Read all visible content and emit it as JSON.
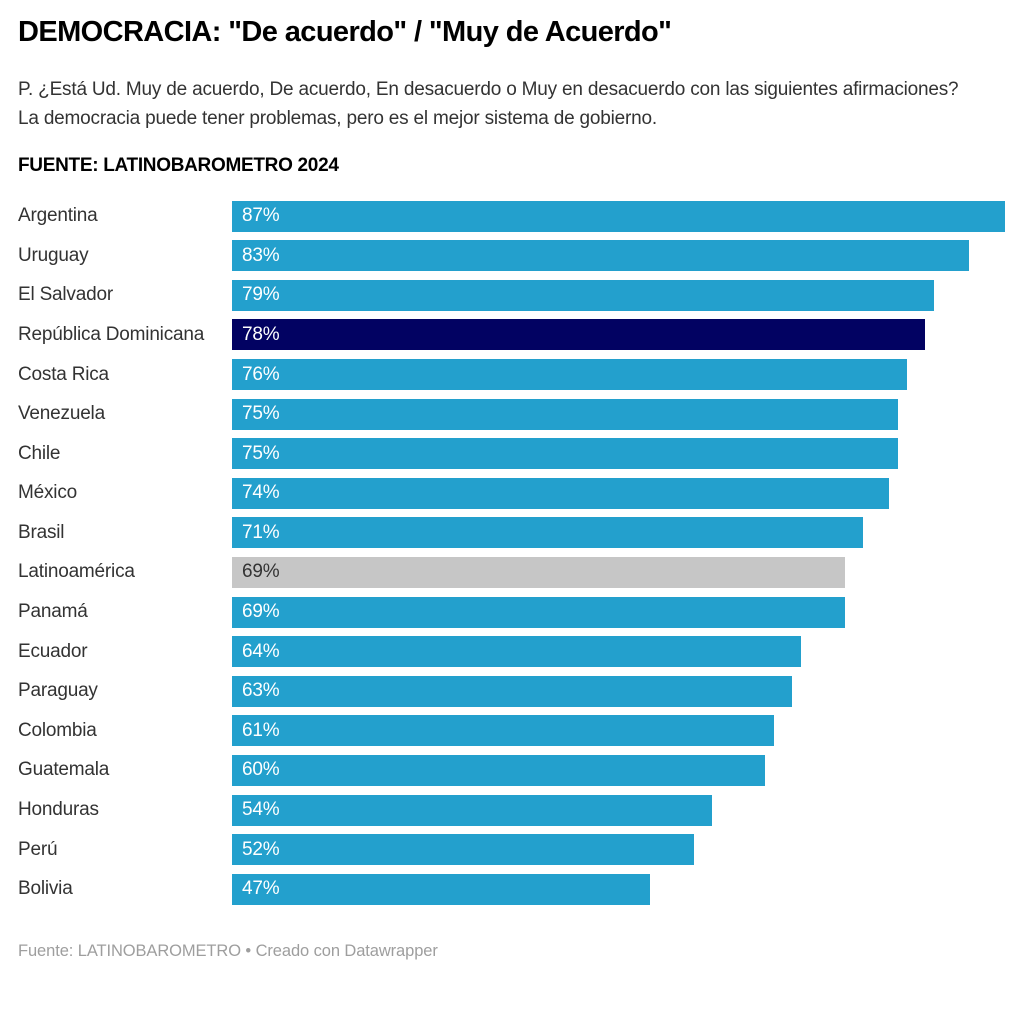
{
  "header": {
    "title": "DEMOCRACIA: \"De acuerdo\" / \"Muy de Acuerdo\"",
    "description": "P. ¿Está Ud. Muy de acuerdo, De acuerdo, En desacuerdo o Muy en desacuerdo con las siguientes afirmaciones? La democracia puede tener problemas, pero es el mejor sistema de gobierno.",
    "source_note": "FUENTE: LATINOBAROMETRO 2024"
  },
  "footer": {
    "attribution": "Fuente: LATINOBAROMETRO • Creado con Datawrapper"
  },
  "chart_data": {
    "type": "bar",
    "orientation": "horizontal",
    "value_suffix": "%",
    "scale_max": 87,
    "axis_visible": false,
    "legend": "none",
    "colors": {
      "default": "#23A0CD",
      "highlight": "#020262",
      "average": "#C6C6C6",
      "value_light": "#FFFFFF",
      "value_dark": "#333333"
    },
    "categories": [
      "Argentina",
      "Uruguay",
      "El Salvador",
      "República Dominicana",
      "Costa Rica",
      "Venezuela",
      "Chile",
      "México",
      "Brasil",
      "Latinoamérica",
      "Panamá",
      "Ecuador",
      "Paraguay",
      "Colombia",
      "Guatemala",
      "Honduras",
      "Perú",
      "Bolivia"
    ],
    "values": [
      87,
      83,
      79,
      78,
      76,
      75,
      75,
      74,
      71,
      69,
      69,
      64,
      63,
      61,
      60,
      54,
      52,
      47
    ],
    "rows": [
      {
        "label": "Argentina",
        "value": 87,
        "display": "87%",
        "type": "default"
      },
      {
        "label": "Uruguay",
        "value": 83,
        "display": "83%",
        "type": "default"
      },
      {
        "label": "El Salvador",
        "value": 79,
        "display": "79%",
        "type": "default"
      },
      {
        "label": "República Dominicana",
        "value": 78,
        "display": "78%",
        "type": "highlight"
      },
      {
        "label": "Costa Rica",
        "value": 76,
        "display": "76%",
        "type": "default"
      },
      {
        "label": "Venezuela",
        "value": 75,
        "display": "75%",
        "type": "default"
      },
      {
        "label": "Chile",
        "value": 75,
        "display": "75%",
        "type": "default"
      },
      {
        "label": "México",
        "value": 74,
        "display": "74%",
        "type": "default"
      },
      {
        "label": "Brasil",
        "value": 71,
        "display": "71%",
        "type": "default"
      },
      {
        "label": "Latinoamérica",
        "value": 69,
        "display": "69%",
        "type": "average"
      },
      {
        "label": "Panamá",
        "value": 69,
        "display": "69%",
        "type": "default"
      },
      {
        "label": "Ecuador",
        "value": 64,
        "display": "64%",
        "type": "default"
      },
      {
        "label": "Paraguay",
        "value": 63,
        "display": "63%",
        "type": "default"
      },
      {
        "label": "Colombia",
        "value": 61,
        "display": "61%",
        "type": "default"
      },
      {
        "label": "Guatemala",
        "value": 60,
        "display": "60%",
        "type": "default"
      },
      {
        "label": "Honduras",
        "value": 54,
        "display": "54%",
        "type": "default"
      },
      {
        "label": "Perú",
        "value": 52,
        "display": "52%",
        "type": "default"
      },
      {
        "label": "Bolivia",
        "value": 47,
        "display": "47%",
        "type": "default"
      }
    ]
  }
}
